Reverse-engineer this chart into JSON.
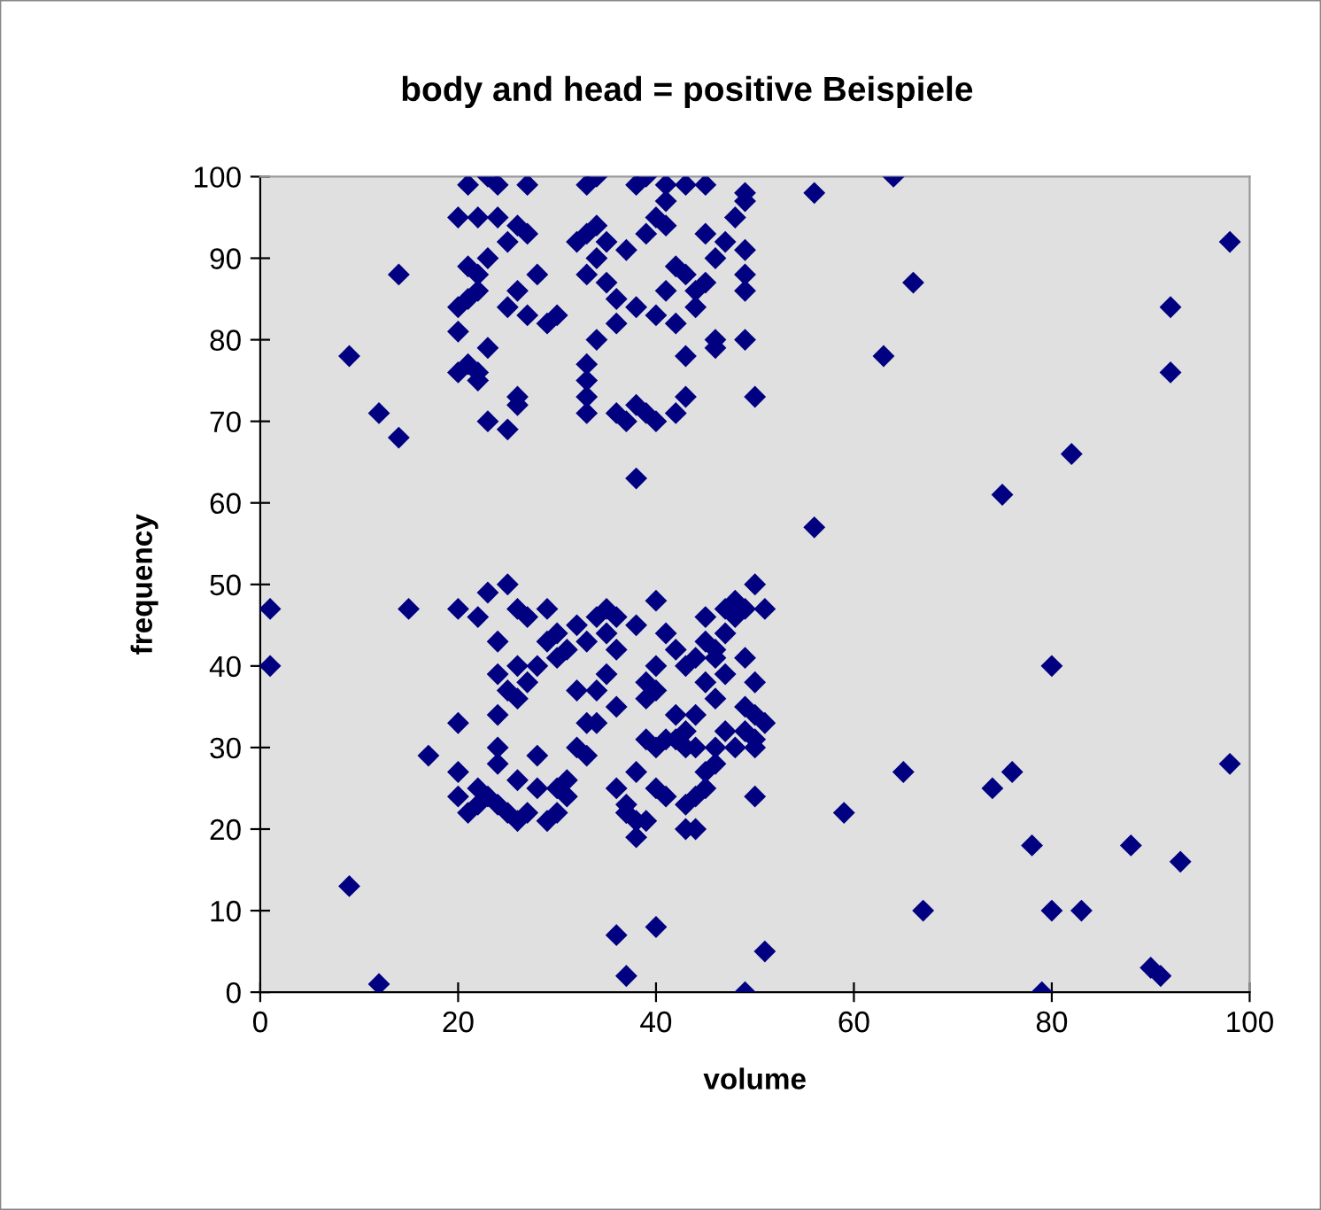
{
  "chart_data": {
    "type": "scatter",
    "title": "body and head = positive Beispiele",
    "xlabel": "volume",
    "ylabel": "frequency",
    "xlim": [
      0,
      100
    ],
    "xticks": [
      0,
      20,
      40,
      60,
      80,
      100
    ],
    "ylim": [
      0,
      100
    ],
    "yticks": [
      0,
      10,
      20,
      30,
      40,
      50,
      60,
      70,
      80,
      90,
      100
    ],
    "grid": false,
    "marker": "diamond",
    "legend": false,
    "series": [
      {
        "color": "#000080",
        "x": [
          21,
          23,
          24,
          27,
          33,
          34,
          38,
          39,
          41,
          43,
          45,
          49,
          49,
          20,
          22,
          24,
          26,
          27,
          25,
          21,
          22,
          23,
          28,
          26,
          22,
          21,
          20,
          25,
          29,
          30,
          20,
          21,
          20,
          22,
          23,
          22,
          26,
          26,
          23,
          25,
          27,
          33,
          34,
          32,
          35,
          34,
          37,
          33,
          35,
          36,
          36,
          34,
          33,
          33,
          33,
          33,
          36,
          37,
          38,
          39,
          40,
          42,
          38,
          39,
          40,
          41,
          38,
          40,
          41,
          42,
          43,
          44,
          42,
          43,
          43,
          44,
          45,
          46,
          47,
          48,
          45,
          46,
          46,
          49,
          49,
          49,
          50,
          49,
          41,
          20,
          22,
          23,
          25,
          26,
          27,
          29,
          29,
          30,
          32,
          31,
          24,
          26,
          24,
          25,
          26,
          27,
          28,
          30,
          24,
          24,
          24,
          22,
          23,
          24,
          25,
          26,
          27,
          26,
          29,
          30,
          30,
          31,
          31,
          32,
          33,
          33,
          34,
          32,
          34,
          33,
          34,
          35,
          36,
          35,
          36,
          35,
          36,
          36,
          37,
          37,
          38,
          38,
          38,
          39,
          39,
          40,
          40,
          40,
          41,
          42,
          42,
          42,
          41,
          43,
          43,
          44,
          44,
          43,
          44,
          45,
          45,
          45,
          46,
          46,
          47,
          47,
          47,
          48,
          48,
          49,
          50,
          51,
          49,
          50,
          49,
          50,
          50,
          50,
          49,
          48,
          47,
          46,
          45,
          44,
          43,
          43,
          44,
          45,
          46,
          41,
          40,
          39,
          38,
          37,
          50,
          51,
          46,
          40,
          39,
          20,
          20,
          20,
          17,
          21,
          22,
          28,
          28,
          1,
          1,
          9,
          12,
          14,
          14,
          15,
          9,
          12,
          36,
          37,
          40,
          49,
          51,
          56,
          56,
          59,
          63,
          64,
          66,
          65,
          67,
          74,
          75,
          76,
          78,
          79,
          80,
          80,
          82,
          83,
          88,
          90,
          91,
          92,
          92,
          93,
          98,
          98
        ],
        "values": [
          99,
          100,
          99,
          99,
          99,
          100,
          99,
          100,
          99,
          99,
          99,
          98,
          97,
          95,
          95,
          95,
          94,
          93,
          92,
          89,
          88,
          90,
          88,
          86,
          86,
          85,
          84,
          84,
          82,
          83,
          81,
          77,
          76,
          76,
          79,
          75,
          73,
          72,
          70,
          69,
          83,
          93,
          94,
          92,
          92,
          90,
          91,
          88,
          87,
          85,
          82,
          80,
          77,
          75,
          73,
          71,
          71,
          70,
          72,
          71,
          70,
          71,
          63,
          93,
          95,
          94,
          84,
          83,
          86,
          89,
          88,
          84,
          82,
          78,
          73,
          86,
          87,
          90,
          92,
          95,
          93,
          80,
          79,
          91,
          88,
          80,
          73,
          86,
          97,
          47,
          46,
          49,
          50,
          47,
          46,
          47,
          43,
          44,
          45,
          42,
          43,
          40,
          39,
          37,
          36,
          38,
          40,
          41,
          34,
          30,
          28,
          25,
          24,
          23,
          22,
          21,
          22,
          26,
          21,
          22,
          25,
          24,
          26,
          30,
          29,
          33,
          33,
          37,
          37,
          43,
          46,
          47,
          46,
          44,
          42,
          39,
          35,
          25,
          23,
          22,
          21,
          19,
          45,
          36,
          38,
          40,
          37,
          48,
          44,
          42,
          34,
          31,
          31,
          32,
          30,
          30,
          34,
          40,
          41,
          46,
          43,
          38,
          41,
          36,
          39,
          44,
          47,
          48,
          46,
          47,
          50,
          47,
          41,
          38,
          35,
          34,
          31,
          30,
          32,
          30,
          32,
          30,
          25,
          24,
          23,
          20,
          20,
          27,
          28,
          24,
          25,
          21,
          27,
          22,
          24,
          33,
          42,
          30,
          31,
          33,
          27,
          24,
          29,
          22,
          23,
          25,
          29,
          47,
          40,
          78,
          71,
          68,
          88,
          47,
          13,
          1,
          7,
          2,
          8,
          0,
          5,
          57,
          98,
          22,
          78,
          100,
          87,
          27,
          10,
          25,
          61,
          27,
          18,
          0,
          40,
          10,
          66,
          10,
          18,
          3,
          2,
          84,
          76,
          16,
          92,
          28
        ]
      }
    ]
  }
}
